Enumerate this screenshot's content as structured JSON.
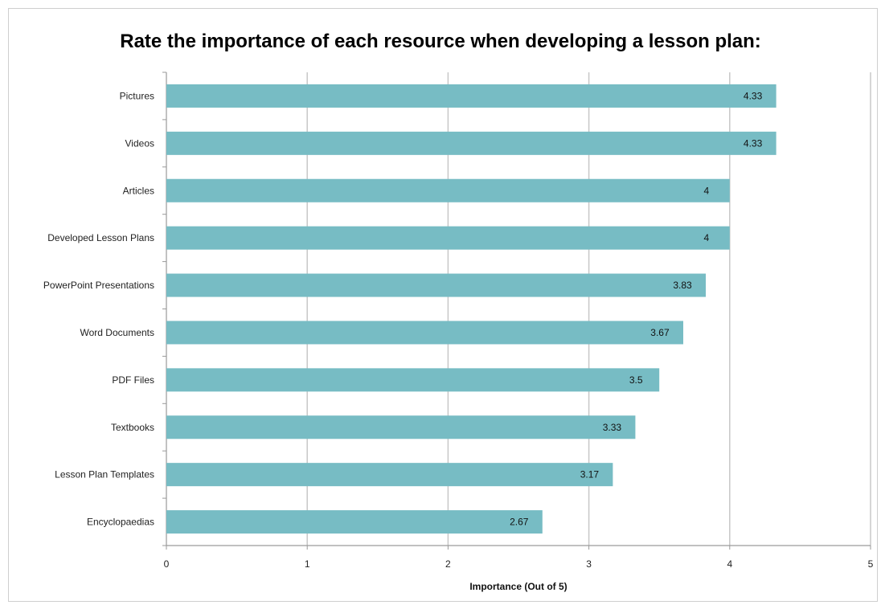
{
  "chart_data": {
    "type": "bar",
    "orientation": "horizontal",
    "title": "Rate the importance of each resource when developing a lesson plan:",
    "xlabel": "Importance (Out of 5)",
    "ylabel": "",
    "xlim": [
      0,
      5
    ],
    "ticks": [
      "0",
      "1",
      "2",
      "3",
      "4",
      "5"
    ],
    "grid": true,
    "bar_color": "#77bcc4",
    "categories": [
      "Pictures",
      "Videos",
      "Articles",
      "Developed Lesson Plans",
      "PowerPoint Presentations",
      "Word Documents",
      "PDF Files",
      "Textbooks",
      "Lesson Plan Templates",
      "Encyclopaedias"
    ],
    "values": [
      4.33,
      4.33,
      4,
      4,
      3.83,
      3.67,
      3.5,
      3.33,
      3.17,
      2.67
    ],
    "value_labels": [
      "4.33",
      "4.33",
      "4",
      "4",
      "3.83",
      "3.67",
      "3.5",
      "3.33",
      "3.17",
      "2.67"
    ]
  }
}
